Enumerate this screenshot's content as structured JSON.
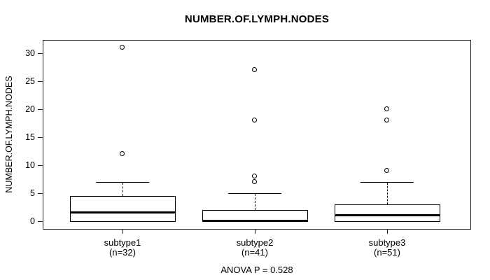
{
  "chart_data": {
    "type": "boxplot",
    "title": "NUMBER.OF.LYMPH.NODES",
    "ylabel": "NUMBER.OF.LYMPH.NODES",
    "xlabel": "",
    "annotation": "ANOVA P = 0.528",
    "yticks": [
      0,
      5,
      10,
      15,
      20,
      25,
      30
    ],
    "ylim": [
      -1.3,
      32.4
    ],
    "grid": false,
    "legend": "none",
    "groups": [
      {
        "label": "subtype1",
        "sublabel": "(n=32)",
        "n": 32,
        "whisker_low": 0,
        "q1": 0,
        "median": 1.5,
        "q3": 4.5,
        "whisker_high": 7,
        "outliers": [
          12,
          31
        ]
      },
      {
        "label": "subtype2",
        "sublabel": "(n=41)",
        "n": 41,
        "whisker_low": 0,
        "q1": 0,
        "median": 0,
        "q3": 2,
        "whisker_high": 5,
        "outliers": [
          7,
          8,
          18,
          27
        ]
      },
      {
        "label": "subtype3",
        "sublabel": "(n=51)",
        "n": 51,
        "whisker_low": 0,
        "q1": 0,
        "median": 1,
        "q3": 3,
        "whisker_high": 7,
        "outliers": [
          9,
          18,
          20
        ]
      }
    ],
    "colors": {
      "box_border": "#000000",
      "median": "#000000",
      "background": "#ffffff",
      "text": "#000000"
    }
  }
}
